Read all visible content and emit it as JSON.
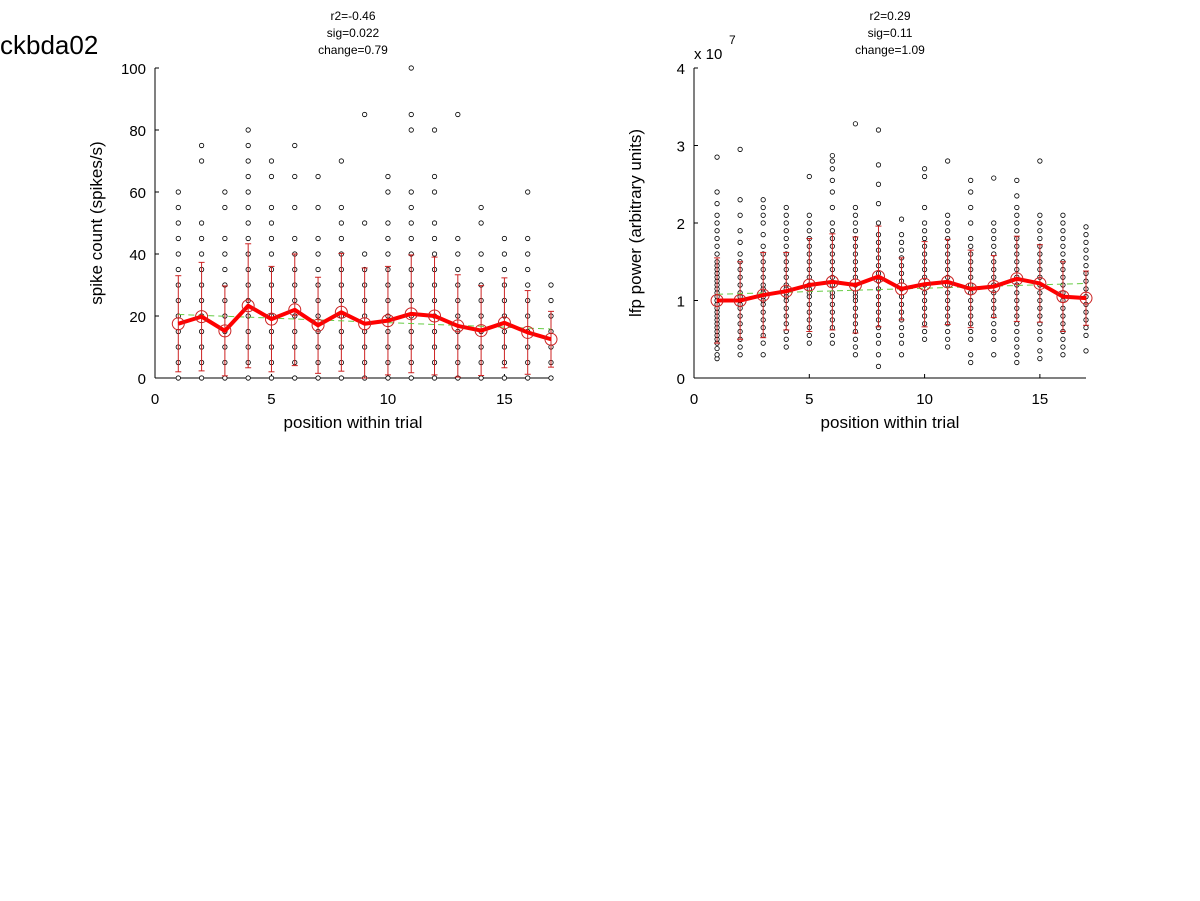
{
  "figure_title": "ckbda02",
  "chart_data": [
    {
      "type": "scatter",
      "title_lines": [
        "r2=-0.46",
        "sig=0.022",
        "change=0.79"
      ],
      "xlabel": "position within trial",
      "ylabel": "spike count (spikes/s)",
      "xlim": [
        0,
        17
      ],
      "ylim": [
        0,
        100
      ],
      "xticks": [
        0,
        5,
        10,
        15
      ],
      "yticks": [
        0,
        20,
        40,
        60,
        80,
        100
      ],
      "exponent_label": "",
      "grid": false,
      "colors": {
        "points": "#000000",
        "mean": "#ff0000",
        "errorbar": "#cc2222",
        "fit": "#66cc44"
      },
      "points": [
        {
          "x": 1,
          "ys": [
            0,
            5,
            10,
            15,
            20,
            25,
            30,
            35,
            40,
            45,
            50,
            55,
            60
          ]
        },
        {
          "x": 2,
          "ys": [
            0,
            5,
            10,
            15,
            20,
            25,
            30,
            35,
            40,
            45,
            50,
            70,
            75
          ]
        },
        {
          "x": 3,
          "ys": [
            0,
            5,
            10,
            15,
            20,
            25,
            30,
            35,
            40,
            45,
            55,
            60
          ]
        },
        {
          "x": 4,
          "ys": [
            0,
            5,
            10,
            15,
            20,
            25,
            30,
            35,
            40,
            45,
            50,
            55,
            60,
            65,
            70,
            75,
            80
          ]
        },
        {
          "x": 5,
          "ys": [
            0,
            5,
            10,
            15,
            20,
            25,
            30,
            35,
            40,
            45,
            50,
            55,
            65,
            70
          ]
        },
        {
          "x": 6,
          "ys": [
            0,
            5,
            10,
            15,
            20,
            25,
            30,
            35,
            40,
            45,
            55,
            65,
            75
          ]
        },
        {
          "x": 7,
          "ys": [
            0,
            5,
            10,
            15,
            20,
            25,
            30,
            35,
            40,
            45,
            55,
            65
          ]
        },
        {
          "x": 8,
          "ys": [
            0,
            5,
            10,
            15,
            20,
            25,
            30,
            35,
            40,
            45,
            50,
            55,
            70
          ]
        },
        {
          "x": 9,
          "ys": [
            0,
            5,
            10,
            15,
            20,
            25,
            30,
            35,
            40,
            50,
            85
          ]
        },
        {
          "x": 10,
          "ys": [
            0,
            5,
            10,
            15,
            20,
            25,
            30,
            35,
            40,
            45,
            50,
            60,
            65
          ]
        },
        {
          "x": 11,
          "ys": [
            0,
            5,
            10,
            15,
            20,
            25,
            30,
            35,
            40,
            45,
            50,
            55,
            60,
            80,
            85,
            100
          ]
        },
        {
          "x": 12,
          "ys": [
            0,
            5,
            10,
            15,
            20,
            25,
            30,
            35,
            40,
            45,
            50,
            60,
            65,
            80
          ]
        },
        {
          "x": 13,
          "ys": [
            0,
            5,
            10,
            15,
            20,
            25,
            30,
            35,
            40,
            45,
            85
          ]
        },
        {
          "x": 14,
          "ys": [
            0,
            5,
            10,
            15,
            20,
            25,
            30,
            35,
            40,
            50,
            55
          ]
        },
        {
          "x": 15,
          "ys": [
            0,
            5,
            10,
            15,
            20,
            25,
            30,
            35,
            40,
            45
          ]
        },
        {
          "x": 16,
          "ys": [
            0,
            5,
            10,
            15,
            20,
            25,
            30,
            35,
            40,
            45,
            60
          ]
        },
        {
          "x": 17,
          "ys": [
            0,
            5,
            10,
            15,
            20,
            25,
            30
          ]
        }
      ],
      "mean": {
        "x": [
          1,
          2,
          3,
          4,
          5,
          6,
          7,
          8,
          9,
          10,
          11,
          12,
          13,
          14,
          15,
          16,
          17
        ],
        "y": [
          17.5,
          19.8,
          15.2,
          23.3,
          19,
          22,
          17,
          21.2,
          17.5,
          18.5,
          20.7,
          20,
          16.8,
          15.3,
          17.8,
          14.7,
          12.5
        ],
        "err": [
          15.5,
          17.5,
          14.5,
          20,
          17,
          18,
          15.5,
          19,
          18,
          17.5,
          19,
          19,
          16.5,
          14.5,
          14.5,
          13.5,
          9
        ]
      },
      "fit": {
        "x": [
          1,
          17
        ],
        "y": [
          20.5,
          15.8
        ]
      }
    },
    {
      "type": "scatter",
      "title_lines": [
        "r2=0.29",
        "sig=0.11",
        "change=1.09"
      ],
      "xlabel": "position within trial",
      "ylabel": "lfp power (arbitrary units)",
      "xlim": [
        0,
        17
      ],
      "ylim": [
        0,
        4
      ],
      "xticks": [
        0,
        5,
        10,
        15
      ],
      "yticks": [
        0,
        1,
        2,
        3,
        4
      ],
      "exponent_label": "x 10",
      "exponent_power": "7",
      "grid": false,
      "colors": {
        "points": "#000000",
        "mean": "#ff0000",
        "errorbar": "#cc2222",
        "fit": "#66cc44"
      },
      "points": [
        {
          "x": 1,
          "ys": [
            0.25,
            0.3,
            0.38,
            0.45,
            0.5,
            0.55,
            0.6,
            0.65,
            0.7,
            0.75,
            0.8,
            0.85,
            0.9,
            0.95,
            1.0,
            1.05,
            1.1,
            1.15,
            1.2,
            1.25,
            1.3,
            1.35,
            1.4,
            1.45,
            1.5,
            1.6,
            1.7,
            1.8,
            1.9,
            2.0,
            2.1,
            2.25,
            2.4,
            2.85
          ]
        },
        {
          "x": 2,
          "ys": [
            0.3,
            0.4,
            0.5,
            0.6,
            0.7,
            0.8,
            0.9,
            0.95,
            1.0,
            1.05,
            1.1,
            1.2,
            1.3,
            1.4,
            1.5,
            1.6,
            1.75,
            1.9,
            2.1,
            2.3,
            2.95
          ]
        },
        {
          "x": 3,
          "ys": [
            0.3,
            0.45,
            0.55,
            0.65,
            0.75,
            0.85,
            0.95,
            1.0,
            1.05,
            1.1,
            1.15,
            1.2,
            1.3,
            1.4,
            1.5,
            1.6,
            1.7,
            1.85,
            2.0,
            2.1,
            2.2,
            2.3
          ]
        },
        {
          "x": 4,
          "ys": [
            0.4,
            0.5,
            0.6,
            0.7,
            0.8,
            0.9,
            1.0,
            1.05,
            1.1,
            1.15,
            1.2,
            1.3,
            1.4,
            1.5,
            1.6,
            1.7,
            1.8,
            1.9,
            2.0,
            2.1,
            2.2
          ]
        },
        {
          "x": 5,
          "ys": [
            0.45,
            0.55,
            0.65,
            0.75,
            0.85,
            0.95,
            1.05,
            1.1,
            1.15,
            1.2,
            1.3,
            1.4,
            1.5,
            1.6,
            1.7,
            1.8,
            1.9,
            2.0,
            2.1,
            2.6
          ]
        },
        {
          "x": 6,
          "ys": [
            0.45,
            0.55,
            0.65,
            0.75,
            0.85,
            0.95,
            1.05,
            1.1,
            1.2,
            1.3,
            1.4,
            1.5,
            1.6,
            1.7,
            1.8,
            1.9,
            2.0,
            2.2,
            2.4,
            2.55,
            2.7,
            2.8,
            2.87
          ]
        },
        {
          "x": 7,
          "ys": [
            0.3,
            0.4,
            0.5,
            0.6,
            0.7,
            0.8,
            0.9,
            1.0,
            1.05,
            1.1,
            1.2,
            1.3,
            1.4,
            1.5,
            1.6,
            1.7,
            1.8,
            1.9,
            2.0,
            2.1,
            2.2,
            3.28
          ]
        },
        {
          "x": 8,
          "ys": [
            0.15,
            0.3,
            0.45,
            0.55,
            0.65,
            0.75,
            0.85,
            0.95,
            1.05,
            1.15,
            1.25,
            1.35,
            1.45,
            1.55,
            1.65,
            1.75,
            1.85,
            2.0,
            2.25,
            2.5,
            2.75,
            3.2
          ]
        },
        {
          "x": 9,
          "ys": [
            0.3,
            0.45,
            0.55,
            0.65,
            0.75,
            0.85,
            0.95,
            1.05,
            1.15,
            1.25,
            1.35,
            1.45,
            1.55,
            1.65,
            1.75,
            1.85,
            2.05
          ]
        },
        {
          "x": 10,
          "ys": [
            0.5,
            0.6,
            0.7,
            0.8,
            0.9,
            1.0,
            1.1,
            1.2,
            1.3,
            1.4,
            1.5,
            1.6,
            1.7,
            1.8,
            1.9,
            2.0,
            2.2,
            2.6,
            2.7
          ]
        },
        {
          "x": 11,
          "ys": [
            0.4,
            0.5,
            0.6,
            0.7,
            0.8,
            0.9,
            1.0,
            1.1,
            1.2,
            1.3,
            1.4,
            1.5,
            1.6,
            1.7,
            1.8,
            1.9,
            2.0,
            2.1,
            2.8
          ]
        },
        {
          "x": 12,
          "ys": [
            0.2,
            0.3,
            0.5,
            0.6,
            0.7,
            0.8,
            0.9,
            1.0,
            1.1,
            1.2,
            1.3,
            1.4,
            1.5,
            1.6,
            1.7,
            1.8,
            2.0,
            2.2,
            2.4,
            2.55
          ]
        },
        {
          "x": 13,
          "ys": [
            0.3,
            0.5,
            0.6,
            0.7,
            0.8,
            0.9,
            1.0,
            1.1,
            1.2,
            1.3,
            1.4,
            1.5,
            1.6,
            1.7,
            1.8,
            1.9,
            2.0,
            2.58
          ]
        },
        {
          "x": 14,
          "ys": [
            0.2,
            0.3,
            0.4,
            0.5,
            0.6,
            0.7,
            0.8,
            0.9,
            1.0,
            1.1,
            1.2,
            1.3,
            1.4,
            1.5,
            1.6,
            1.7,
            1.8,
            1.9,
            2.0,
            2.1,
            2.2,
            2.35,
            2.55
          ]
        },
        {
          "x": 15,
          "ys": [
            0.25,
            0.35,
            0.5,
            0.6,
            0.7,
            0.8,
            0.9,
            1.0,
            1.1,
            1.2,
            1.3,
            1.4,
            1.5,
            1.6,
            1.7,
            1.8,
            1.9,
            2.0,
            2.1,
            2.8
          ]
        },
        {
          "x": 16,
          "ys": [
            0.3,
            0.4,
            0.5,
            0.6,
            0.7,
            0.8,
            0.9,
            1.0,
            1.1,
            1.2,
            1.3,
            1.4,
            1.5,
            1.6,
            1.7,
            1.8,
            1.9,
            2.0,
            2.1
          ]
        },
        {
          "x": 17,
          "ys": [
            0.35,
            0.55,
            0.65,
            0.75,
            0.85,
            0.95,
            1.05,
            1.15,
            1.25,
            1.35,
            1.45,
            1.55,
            1.65,
            1.75,
            1.85,
            1.95
          ]
        }
      ],
      "mean": {
        "x": [
          1,
          2,
          3,
          4,
          5,
          6,
          7,
          8,
          9,
          10,
          11,
          12,
          13,
          14,
          15,
          16,
          17
        ],
        "y": [
          1.0,
          1.0,
          1.07,
          1.12,
          1.2,
          1.24,
          1.2,
          1.31,
          1.15,
          1.21,
          1.24,
          1.15,
          1.18,
          1.28,
          1.22,
          1.05,
          1.03
        ],
        "err": [
          0.55,
          0.5,
          0.55,
          0.5,
          0.6,
          0.62,
          0.62,
          0.65,
          0.4,
          0.55,
          0.55,
          0.5,
          0.4,
          0.55,
          0.5,
          0.45,
          0.35
        ]
      },
      "fit": {
        "x": [
          1,
          17
        ],
        "y": [
          1.08,
          1.22
        ]
      }
    }
  ]
}
